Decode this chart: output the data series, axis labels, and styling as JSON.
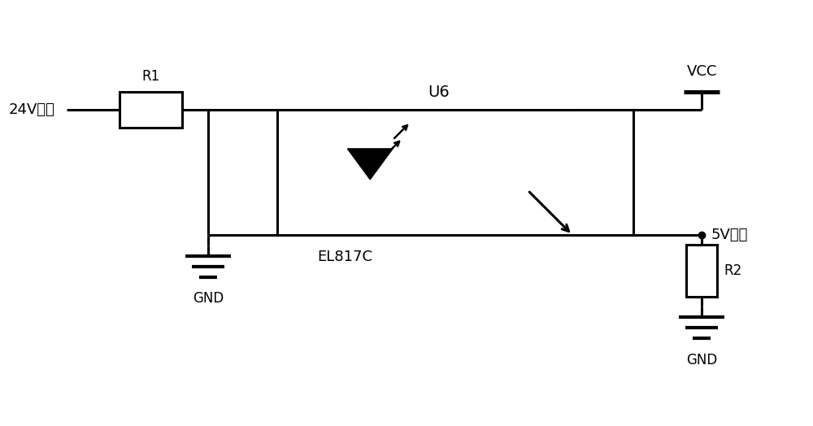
{
  "background_color": "#ffffff",
  "line_color": "#000000",
  "line_width": 2.2,
  "labels": {
    "v24": "24V信号",
    "r1": "R1",
    "u6": "U6",
    "vcc": "VCC",
    "v5": "5V信号",
    "el817c": "EL817C",
    "gnd1": "GND",
    "gnd2": "GND",
    "r2": "R2"
  }
}
